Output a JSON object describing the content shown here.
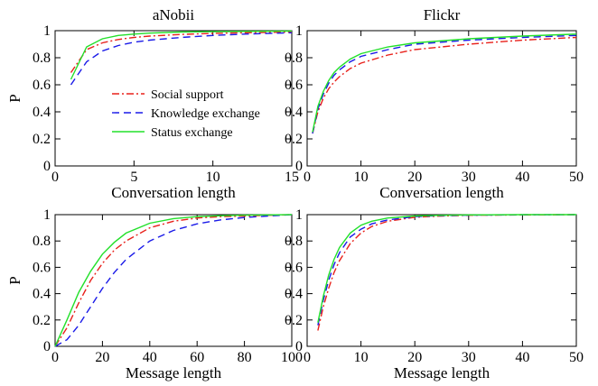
{
  "series_styles": {
    "Social support": {
      "color": "#e8201a",
      "dash": "8,3,2,3"
    },
    "Knowledge exchange": {
      "color": "#1a1ae8",
      "dash": "8,5"
    },
    "Status exchange": {
      "color": "#22e02a",
      "dash": ""
    }
  },
  "chart_data": [
    {
      "type": "line",
      "title": "aNobii",
      "xlabel": "Conversation length",
      "ylabel": "P",
      "xlim": [
        0,
        15
      ],
      "ylim": [
        0,
        1
      ],
      "xticks": [
        0,
        5,
        10,
        15
      ],
      "yticks": [
        0,
        0.2,
        0.4,
        0.6,
        0.8,
        1
      ],
      "ytick_labels": [
        "0",
        "0.2",
        "0.4",
        "0.6",
        "0.8",
        "1"
      ],
      "legend": {
        "position": "center-left",
        "entries": [
          "Social support",
          "Knowledge exchange",
          "Status exchange"
        ]
      },
      "series": [
        {
          "name": "Social support",
          "x": [
            1,
            2,
            3,
            4,
            5,
            6,
            8,
            10,
            12,
            15
          ],
          "y": [
            0.69,
            0.86,
            0.91,
            0.935,
            0.95,
            0.96,
            0.972,
            0.98,
            0.985,
            0.99
          ]
        },
        {
          "name": "Knowledge exchange",
          "x": [
            1,
            2,
            3,
            4,
            5,
            6,
            8,
            10,
            12,
            15
          ],
          "y": [
            0.6,
            0.77,
            0.85,
            0.89,
            0.915,
            0.93,
            0.95,
            0.965,
            0.975,
            0.985
          ]
        },
        {
          "name": "Status exchange",
          "x": [
            1,
            2,
            3,
            4,
            5,
            6,
            8,
            10,
            12,
            15
          ],
          "y": [
            0.64,
            0.88,
            0.94,
            0.965,
            0.975,
            0.982,
            0.99,
            0.993,
            0.995,
            0.997
          ]
        }
      ]
    },
    {
      "type": "line",
      "title": "Flickr",
      "xlabel": "Conversation length",
      "ylabel": "",
      "xlim": [
        0,
        50
      ],
      "ylim": [
        0,
        1
      ],
      "xticks": [
        0,
        10,
        20,
        30,
        40,
        50
      ],
      "yticks": [
        0,
        0.2,
        0.4,
        0.6,
        0.8,
        1
      ],
      "ytick_labels": [
        "0",
        "0.2",
        "0.4",
        "0.6",
        "0.8",
        "1"
      ],
      "series": [
        {
          "name": "Social support",
          "x": [
            1,
            2,
            3,
            4,
            5,
            6,
            8,
            10,
            15,
            20,
            30,
            40,
            50
          ],
          "y": [
            0.24,
            0.4,
            0.5,
            0.57,
            0.62,
            0.66,
            0.72,
            0.76,
            0.82,
            0.86,
            0.9,
            0.93,
            0.95
          ]
        },
        {
          "name": "Knowledge exchange",
          "x": [
            1,
            2,
            3,
            4,
            5,
            6,
            8,
            10,
            15,
            20,
            30,
            40,
            50
          ],
          "y": [
            0.24,
            0.42,
            0.53,
            0.61,
            0.67,
            0.71,
            0.77,
            0.81,
            0.86,
            0.9,
            0.93,
            0.95,
            0.965
          ]
        },
        {
          "name": "Status exchange",
          "x": [
            1,
            2,
            3,
            4,
            5,
            6,
            8,
            10,
            15,
            20,
            30,
            40,
            50
          ],
          "y": [
            0.25,
            0.44,
            0.55,
            0.63,
            0.69,
            0.73,
            0.79,
            0.83,
            0.88,
            0.91,
            0.94,
            0.96,
            0.975
          ]
        }
      ]
    },
    {
      "type": "line",
      "title": "",
      "xlabel": "Message length",
      "ylabel": "P",
      "xlim": [
        0,
        100
      ],
      "ylim": [
        0,
        1
      ],
      "xticks": [
        0,
        20,
        40,
        60,
        80,
        100
      ],
      "yticks": [
        0,
        0.2,
        0.4,
        0.6,
        0.8,
        1
      ],
      "ytick_labels": [
        "0",
        "0.2",
        "0.4",
        "0.6",
        "0.8",
        "1"
      ],
      "series": [
        {
          "name": "Social support",
          "x": [
            0,
            5,
            10,
            15,
            20,
            25,
            30,
            40,
            50,
            60,
            70,
            80,
            90,
            100
          ],
          "y": [
            0.0,
            0.14,
            0.33,
            0.5,
            0.63,
            0.73,
            0.8,
            0.9,
            0.95,
            0.975,
            0.985,
            0.99,
            0.995,
            1.0
          ]
        },
        {
          "name": "Knowledge exchange",
          "x": [
            0,
            5,
            10,
            15,
            20,
            25,
            30,
            40,
            50,
            60,
            70,
            80,
            90,
            100
          ],
          "y": [
            0.0,
            0.05,
            0.16,
            0.3,
            0.44,
            0.56,
            0.66,
            0.8,
            0.88,
            0.93,
            0.96,
            0.978,
            0.99,
            1.0
          ]
        },
        {
          "name": "Status exchange",
          "x": [
            0,
            5,
            10,
            15,
            20,
            25,
            30,
            40,
            50,
            60,
            70,
            80,
            90,
            100
          ],
          "y": [
            0.0,
            0.2,
            0.41,
            0.57,
            0.7,
            0.79,
            0.86,
            0.935,
            0.97,
            0.985,
            0.992,
            0.996,
            0.998,
            1.0
          ]
        }
      ]
    },
    {
      "type": "line",
      "title": "",
      "xlabel": "Message length",
      "ylabel": "",
      "xlim": [
        0,
        50
      ],
      "ylim": [
        0,
        1
      ],
      "xticks": [
        0,
        10,
        20,
        30,
        40,
        50
      ],
      "yticks": [
        0,
        0.2,
        0.4,
        0.6,
        0.8,
        1
      ],
      "ytick_labels": [
        "0",
        "0.2",
        "0.4",
        "0.6",
        "0.8",
        "1"
      ],
      "series": [
        {
          "name": "Social support",
          "x": [
            2,
            3,
            4,
            5,
            6,
            8,
            10,
            12,
            15,
            20,
            25,
            30,
            40,
            50
          ],
          "y": [
            0.12,
            0.3,
            0.44,
            0.56,
            0.65,
            0.78,
            0.86,
            0.91,
            0.95,
            0.98,
            0.99,
            0.995,
            0.998,
            1.0
          ]
        },
        {
          "name": "Knowledge exchange",
          "x": [
            2,
            3,
            4,
            5,
            6,
            8,
            10,
            12,
            15,
            20,
            25,
            30,
            40,
            50
          ],
          "y": [
            0.16,
            0.35,
            0.5,
            0.62,
            0.71,
            0.83,
            0.89,
            0.93,
            0.96,
            0.985,
            0.993,
            0.996,
            0.999,
            1.0
          ]
        },
        {
          "name": "Status exchange",
          "x": [
            2,
            3,
            4,
            5,
            6,
            8,
            10,
            12,
            15,
            20,
            25,
            30,
            40,
            50
          ],
          "y": [
            0.18,
            0.38,
            0.54,
            0.66,
            0.75,
            0.86,
            0.92,
            0.95,
            0.975,
            0.99,
            0.995,
            0.998,
            1.0,
            1.0
          ]
        }
      ]
    }
  ]
}
